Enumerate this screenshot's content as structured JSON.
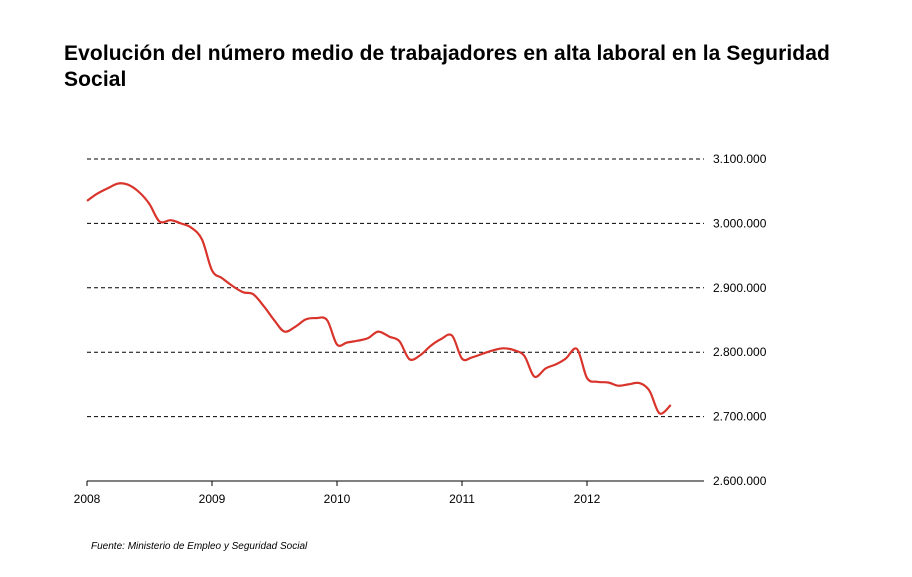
{
  "chart_data": {
    "type": "line",
    "title": "Evolución del número medio de trabajadores en alta laboral en la Seguridad Social",
    "source": "Fuente: Ministerio de Empleo y Seguridad Social",
    "xlabel": "",
    "ylabel": "",
    "x_ticks": [
      "2008",
      "2009",
      "2010",
      "2011",
      "2012"
    ],
    "y_ticks": [
      "2.600.000",
      "2.700.000",
      "2.800.000",
      "2.900.000",
      "3.000.000",
      "3.100.000"
    ],
    "y_tick_values": [
      2600000,
      2700000,
      2800000,
      2900000,
      3000000,
      3100000
    ],
    "ylim": [
      2600000,
      3100000
    ],
    "xlim": [
      2008.0,
      2013.0
    ],
    "grid": "horizontal dashed",
    "y_axis_side": "right",
    "series_color": "#d9342b",
    "series": [
      {
        "x": [
          2008.0,
          2008.08,
          2008.17,
          2008.25,
          2008.33,
          2008.42,
          2008.5,
          2008.58,
          2008.67,
          2008.75,
          2008.83,
          2008.92,
          2009.0,
          2009.08,
          2009.17,
          2009.25,
          2009.33,
          2009.42,
          2009.5,
          2009.58,
          2009.67,
          2009.75,
          2009.83,
          2009.92,
          2010.0,
          2010.08,
          2010.17,
          2010.25,
          2010.33,
          2010.42,
          2010.5,
          2010.58,
          2010.67,
          2010.75,
          2010.83,
          2010.92,
          2011.0,
          2011.08,
          2011.17,
          2011.25,
          2011.33,
          2011.42,
          2011.5,
          2011.58,
          2011.67,
          2011.75,
          2011.83,
          2011.92,
          2012.0,
          2012.08,
          2012.17,
          2012.25,
          2012.33,
          2012.42,
          2012.5,
          2012.58,
          2012.67
        ],
        "values": [
          3035000,
          3046000,
          3055000,
          3062000,
          3060000,
          3048000,
          3030000,
          3003000,
          3005000,
          3000000,
          2994000,
          2975000,
          2927000,
          2915000,
          2902000,
          2893000,
          2890000,
          2870000,
          2849000,
          2832000,
          2840000,
          2851000,
          2853000,
          2850000,
          2812000,
          2815000,
          2818000,
          2822000,
          2832000,
          2824000,
          2817000,
          2789000,
          2796000,
          2810000,
          2820000,
          2826000,
          2790000,
          2792000,
          2798000,
          2803000,
          2806000,
          2803000,
          2794000,
          2762000,
          2775000,
          2781000,
          2790000,
          2805000,
          2760000,
          2754000,
          2753000,
          2748000,
          2750000,
          2752000,
          2740000,
          2705000,
          2718000
        ]
      }
    ]
  }
}
